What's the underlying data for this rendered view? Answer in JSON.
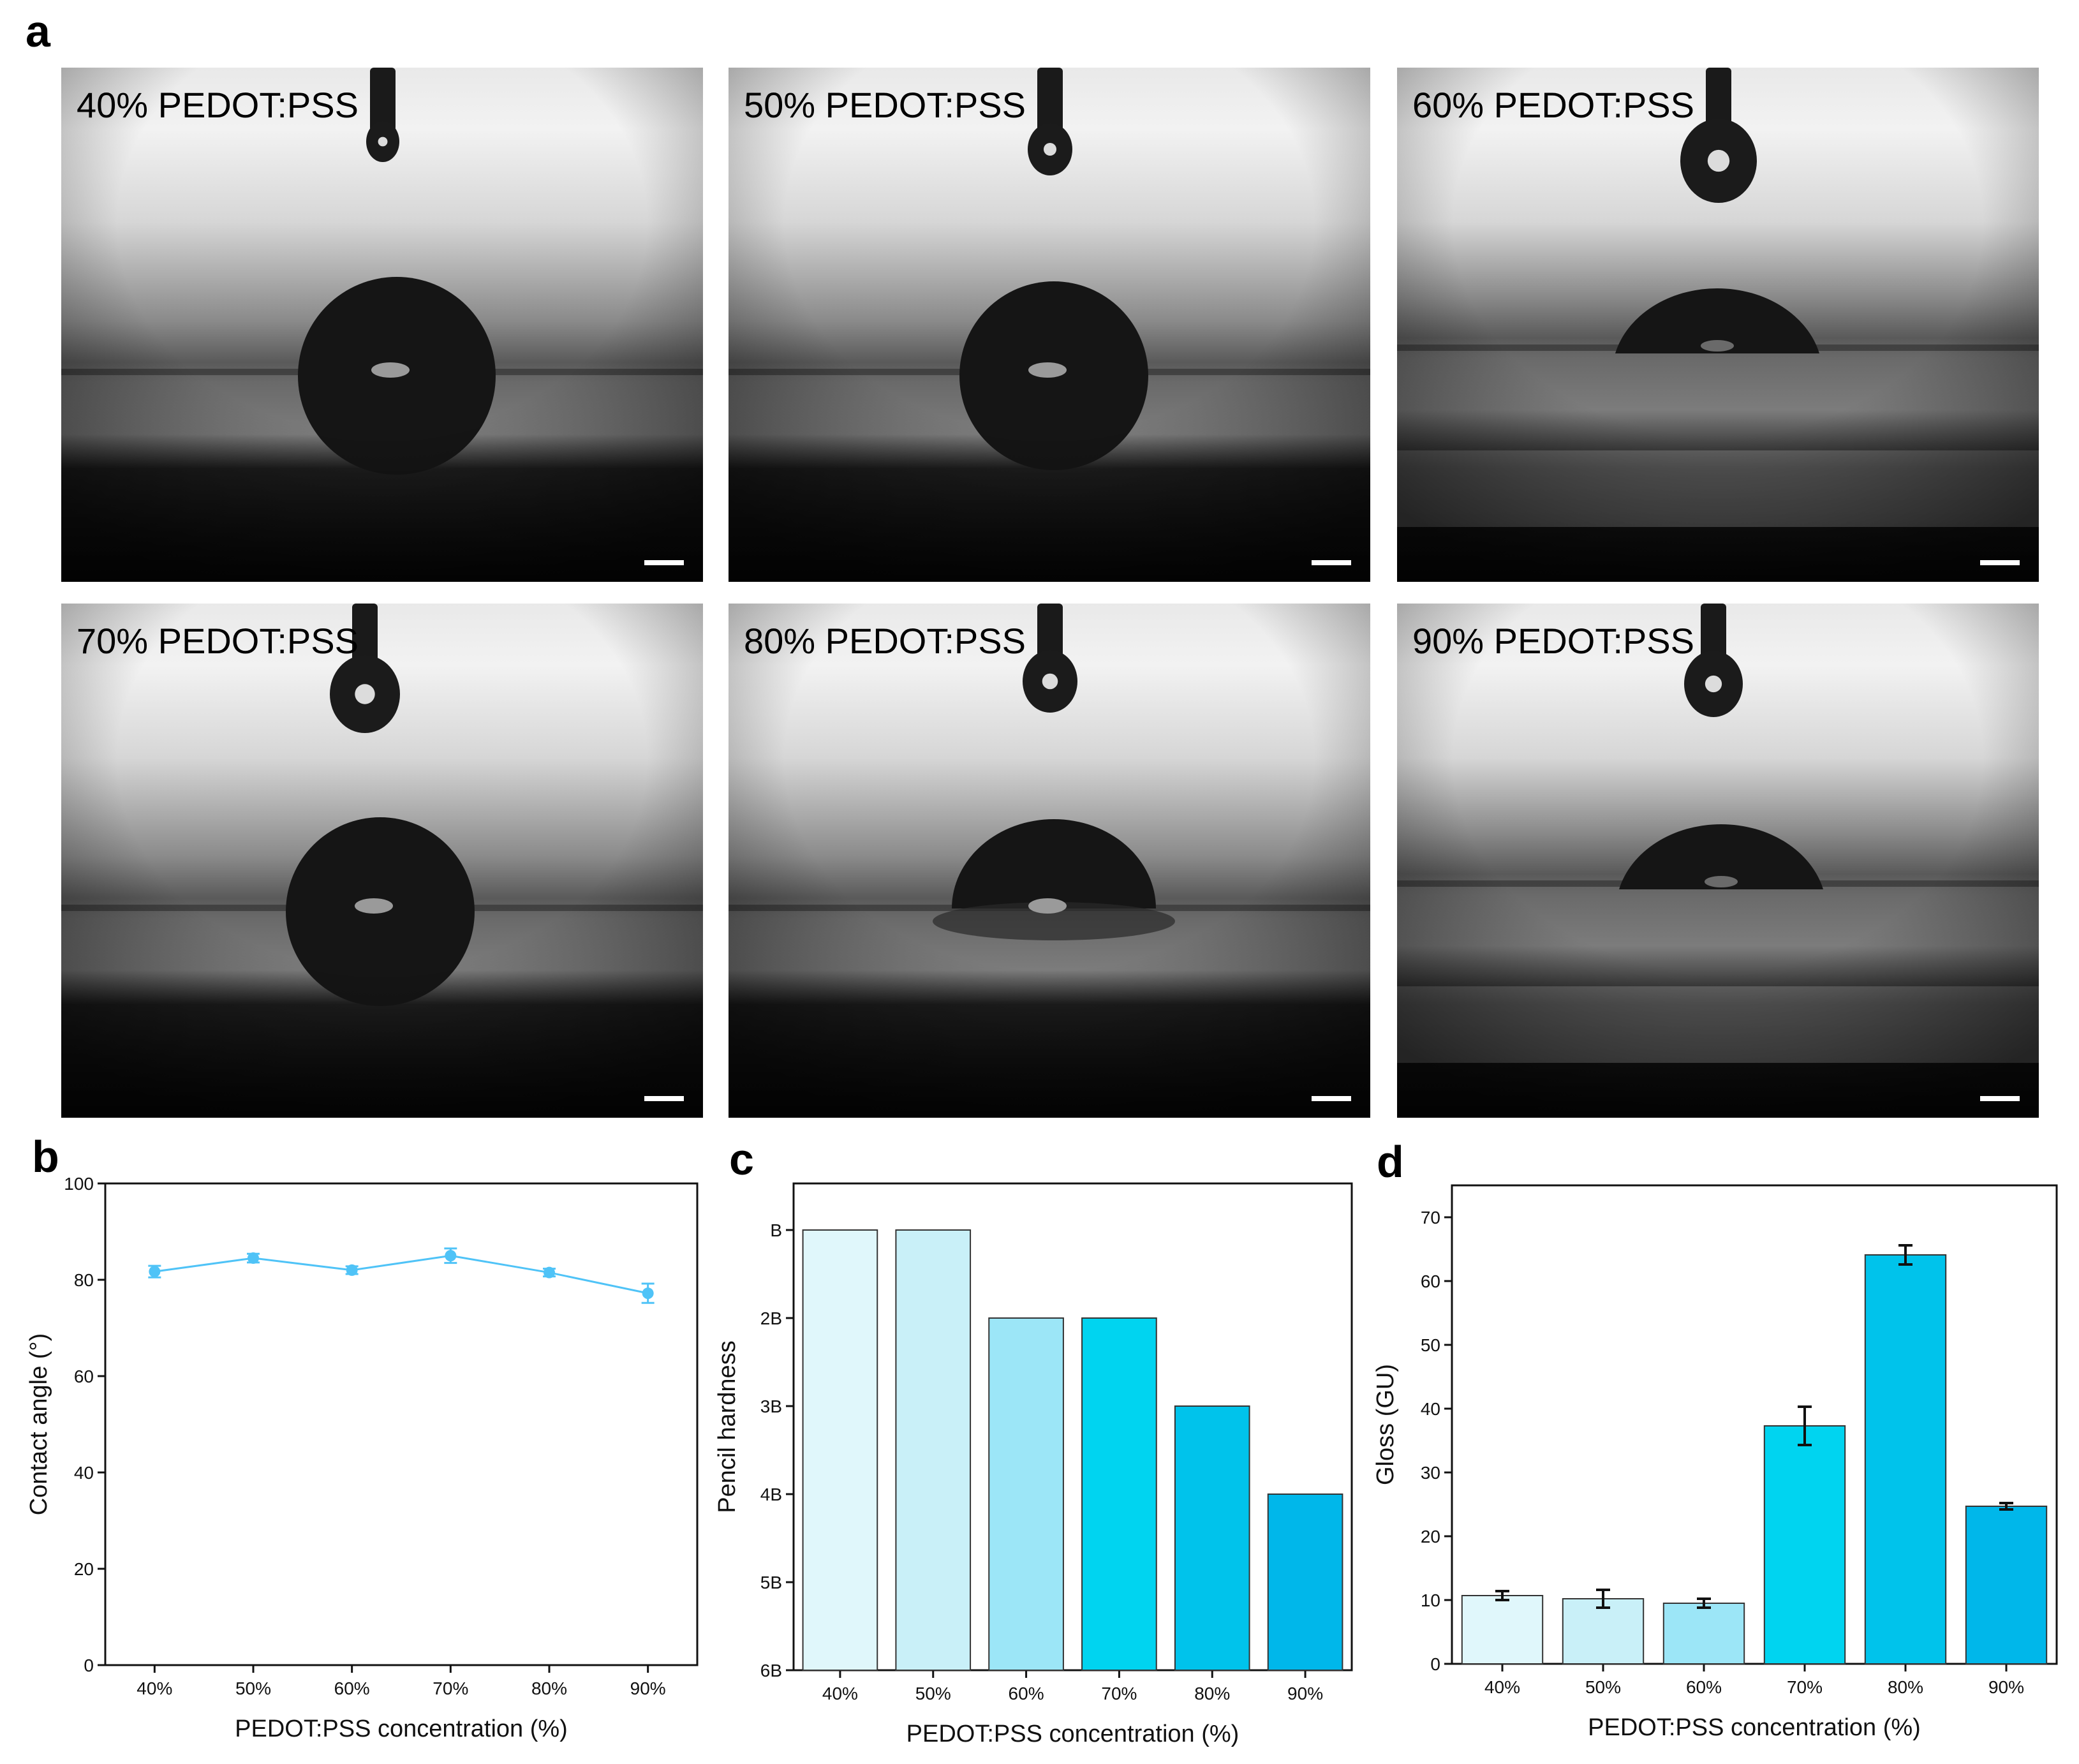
{
  "panel_labels": {
    "a": "a",
    "b": "b",
    "c": "c",
    "d": "d"
  },
  "photos": [
    {
      "label": "40% PEDOT:PSS",
      "style": "spherical"
    },
    {
      "label": "50% PEDOT:PSS",
      "style": "spherical"
    },
    {
      "label": "60% PEDOT:PSS",
      "style": "cap"
    },
    {
      "label": "70% PEDOT:PSS",
      "style": "spherical"
    },
    {
      "label": "80% PEDOT:PSS",
      "style": "dome"
    },
    {
      "label": "90% PEDOT:PSS",
      "style": "cap"
    }
  ],
  "chart_data": [
    {
      "panel": "b",
      "type": "line",
      "categories": [
        "40%",
        "50%",
        "60%",
        "70%",
        "80%",
        "90%"
      ],
      "series": [
        {
          "values": [
            81.7,
            84.5,
            82.0,
            85.0,
            81.5,
            77.2
          ],
          "errors": [
            1.2,
            0.9,
            0.8,
            1.5,
            0.8,
            2.0
          ],
          "color": "#4fc3f7"
        }
      ],
      "xlabel": "PEDOT:PSS concentration (%)",
      "ylabel": "Contact angle (°)",
      "ylim": [
        0,
        100
      ],
      "yticks": [
        "0",
        "20",
        "40",
        "60",
        "80",
        "100"
      ],
      "grid": false
    },
    {
      "panel": "c",
      "type": "bar",
      "categories": [
        "40%",
        "50%",
        "60%",
        "70%",
        "80%",
        "90%"
      ],
      "values": [
        "B",
        "B",
        "2B",
        "2B",
        "3B",
        "4B"
      ],
      "levels": [
        "B",
        "2B",
        "3B",
        "4B",
        "5B",
        "6B"
      ],
      "colors": [
        "#e0f7fb",
        "#c9f0f8",
        "#9ce6f7",
        "#00d4f0",
        "#00c3eb",
        "#00b7ea"
      ],
      "xlabel": "PEDOT:PSS concentration (%)",
      "ylabel": "Pencil hardness",
      "grid": false
    },
    {
      "panel": "d",
      "type": "bar",
      "categories": [
        "40%",
        "50%",
        "60%",
        "70%",
        "80%",
        "90%"
      ],
      "values": [
        10.7,
        10.2,
        9.5,
        37.3,
        64.1,
        24.7
      ],
      "errors": [
        0.7,
        1.4,
        0.7,
        3.0,
        1.5,
        0.5
      ],
      "colors": [
        "#e0f7fb",
        "#c9f0f8",
        "#9ce6f7",
        "#00d4f0",
        "#00c3eb",
        "#00b7ea"
      ],
      "xlabel": "PEDOT:PSS concentration (%)",
      "ylabel": "Gloss (GU)",
      "ylim": [
        0,
        75
      ],
      "yticks": [
        "0",
        "10",
        "20",
        "30",
        "40",
        "50",
        "60",
        "70"
      ],
      "grid": false
    }
  ]
}
